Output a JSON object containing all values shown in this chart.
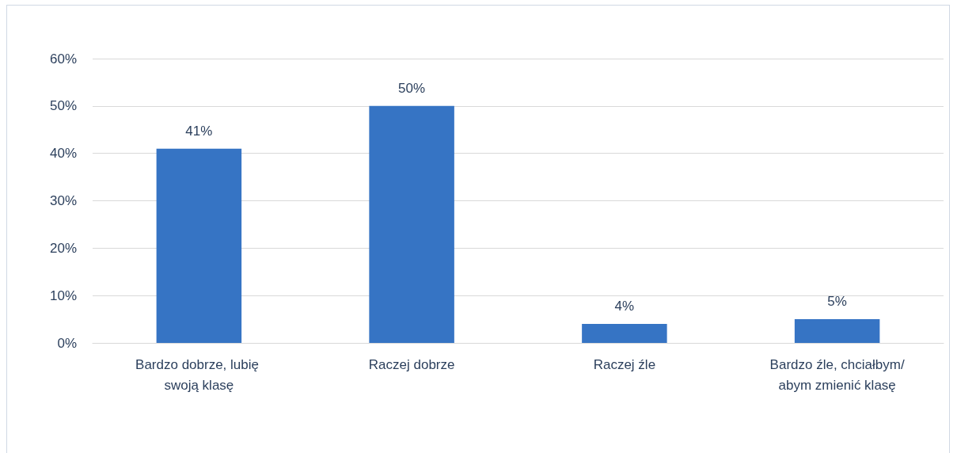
{
  "chart_data": {
    "type": "bar",
    "categories": [
      "Bardzo dobrze, lubię swoją klasę",
      "Raczej dobrze",
      "Raczej źle",
      "Bardzo źle, chciałbym/abym zmienić klasę"
    ],
    "values": [
      41,
      50,
      4,
      5
    ],
    "value_labels": [
      "41%",
      "50%",
      "4%",
      "5%"
    ],
    "color": "#3674c4",
    "ylim": [
      0,
      60
    ],
    "yticks": [
      {
        "value": 0,
        "label": "0%"
      },
      {
        "value": 10,
        "label": "10%"
      },
      {
        "value": 20,
        "label": "20%"
      },
      {
        "value": 30,
        "label": "30%"
      },
      {
        "value": 40,
        "label": "40%"
      },
      {
        "value": 50,
        "label": "50%"
      },
      {
        "value": 60,
        "label": "60%"
      }
    ],
    "grid": "y"
  }
}
